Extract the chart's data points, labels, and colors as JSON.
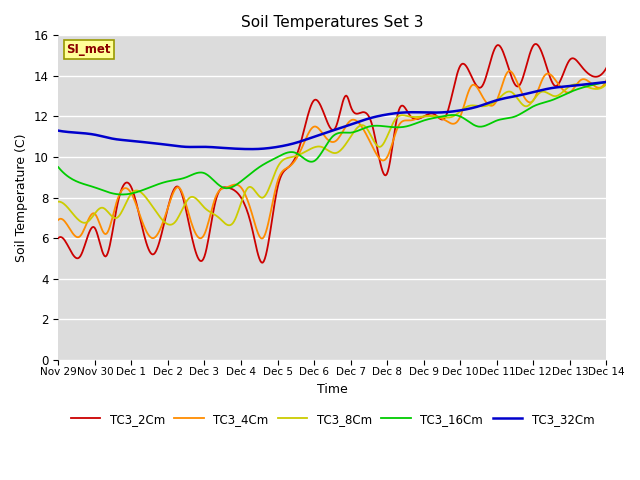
{
  "title": "Soil Temperatures Set 3",
  "xlabel": "Time",
  "ylabel": "Soil Temperature (C)",
  "ylim": [
    0,
    16
  ],
  "yticks": [
    0,
    2,
    4,
    6,
    8,
    10,
    12,
    14,
    16
  ],
  "background_color": "#dcdcdc",
  "annotation_text": "SI_met",
  "annotation_color": "#8b0000",
  "annotation_bg": "#ffff99",
  "x_labels": [
    "Nov 29",
    "Nov 30",
    "Dec 1",
    "Dec 2",
    "Dec 3",
    "Dec 4",
    "Dec 5",
    "Dec 6",
    "Dec 7",
    "Dec 8",
    "Dec 9",
    "Dec 10",
    "Dec 11",
    "Dec 12",
    "Dec 13",
    "Dec 14"
  ],
  "series_names": [
    "TC3_2Cm",
    "TC3_4Cm",
    "TC3_8Cm",
    "TC3_16Cm",
    "TC3_32Cm"
  ],
  "series_colors": [
    "#cc0000",
    "#ff8c00",
    "#cccc00",
    "#00cc00",
    "#0000cc"
  ],
  "series_lw": [
    1.3,
    1.3,
    1.3,
    1.3,
    1.8
  ],
  "TC3_2Cm_x": [
    0,
    0.3,
    0.6,
    1.0,
    1.3,
    1.6,
    2.0,
    2.3,
    2.6,
    3.0,
    3.3,
    3.6,
    4.0,
    4.3,
    4.6,
    5.0,
    5.3,
    5.6,
    6.0,
    6.3,
    6.6,
    7.0,
    7.3,
    7.6,
    7.9,
    8.0,
    8.3,
    8.6,
    9.0,
    9.3,
    9.6,
    10.0,
    10.3,
    10.6,
    11.0,
    11.3,
    11.6,
    12.0,
    12.3,
    12.6,
    13.0,
    13.3,
    13.6,
    14.0,
    14.3,
    14.6,
    15.0
  ],
  "TC3_2Cm_y": [
    6.0,
    5.5,
    5.1,
    6.5,
    5.1,
    7.5,
    8.5,
    6.5,
    5.2,
    7.5,
    8.5,
    6.5,
    5.1,
    7.8,
    8.5,
    8.0,
    6.5,
    4.8,
    8.5,
    9.5,
    10.5,
    12.8,
    12.0,
    11.5,
    13.0,
    12.5,
    12.2,
    11.5,
    9.2,
    12.2,
    12.1,
    12.0,
    12.1,
    12.0,
    14.5,
    14.0,
    13.5,
    15.5,
    14.5,
    13.5,
    15.5,
    14.8,
    13.5,
    14.8,
    14.5,
    14.0,
    14.4
  ],
  "TC3_4Cm_x": [
    0,
    0.3,
    0.6,
    1.0,
    1.3,
    1.6,
    2.0,
    2.3,
    2.6,
    3.0,
    3.3,
    3.6,
    4.0,
    4.3,
    4.6,
    5.0,
    5.3,
    5.6,
    6.0,
    6.3,
    6.6,
    7.0,
    7.3,
    7.6,
    8.0,
    8.3,
    8.6,
    9.0,
    9.3,
    9.6,
    10.0,
    10.3,
    10.6,
    11.0,
    11.3,
    11.6,
    12.0,
    12.3,
    12.6,
    13.0,
    13.3,
    13.6,
    14.0,
    14.3,
    14.6,
    15.0
  ],
  "TC3_4Cm_y": [
    6.9,
    6.5,
    6.1,
    7.2,
    6.2,
    7.8,
    8.2,
    6.8,
    6.0,
    7.5,
    8.5,
    7.0,
    6.2,
    8.0,
    8.5,
    8.5,
    7.2,
    6.0,
    8.8,
    9.5,
    10.2,
    11.5,
    11.0,
    10.8,
    11.8,
    11.5,
    10.5,
    10.0,
    11.5,
    11.8,
    12.0,
    12.0,
    11.8,
    12.0,
    13.5,
    13.0,
    12.8,
    14.2,
    13.5,
    12.8,
    14.0,
    13.8,
    13.2,
    13.8,
    13.6,
    13.8
  ],
  "TC3_8Cm_x": [
    0,
    0.4,
    0.8,
    1.2,
    1.6,
    2.0,
    2.4,
    2.8,
    3.2,
    3.6,
    4.0,
    4.4,
    4.8,
    5.2,
    5.6,
    6.0,
    6.4,
    6.8,
    7.2,
    7.6,
    8.0,
    8.4,
    8.8,
    9.2,
    9.6,
    10.0,
    10.4,
    10.8,
    11.2,
    11.6,
    12.0,
    12.4,
    12.8,
    13.2,
    13.6,
    14.0,
    14.4,
    15.0
  ],
  "TC3_8Cm_y": [
    7.8,
    7.2,
    6.8,
    7.5,
    7.0,
    8.2,
    8.0,
    7.0,
    6.8,
    8.0,
    7.5,
    7.0,
    6.8,
    8.5,
    8.0,
    9.5,
    10.0,
    10.3,
    10.5,
    10.2,
    11.0,
    11.5,
    10.5,
    11.8,
    12.0,
    12.0,
    12.0,
    12.0,
    12.5,
    12.5,
    12.8,
    13.2,
    12.5,
    13.2,
    13.0,
    13.5,
    13.5,
    13.6
  ],
  "TC3_16Cm_x": [
    0,
    0.5,
    1.0,
    1.5,
    2.0,
    2.5,
    3.0,
    3.5,
    4.0,
    4.5,
    5.0,
    5.5,
    6.0,
    6.5,
    7.0,
    7.5,
    8.0,
    8.5,
    9.0,
    9.5,
    10.0,
    10.5,
    11.0,
    11.5,
    12.0,
    12.5,
    13.0,
    13.5,
    14.0,
    14.5,
    15.0
  ],
  "TC3_16Cm_y": [
    9.5,
    8.8,
    8.5,
    8.2,
    8.2,
    8.5,
    8.8,
    9.0,
    9.2,
    8.5,
    8.8,
    9.5,
    10.0,
    10.2,
    9.8,
    11.0,
    11.2,
    11.5,
    11.5,
    11.5,
    11.8,
    12.0,
    12.0,
    11.5,
    11.8,
    12.0,
    12.5,
    12.8,
    13.2,
    13.5,
    13.7
  ],
  "TC3_32Cm_x": [
    0,
    0.5,
    1.0,
    1.5,
    2.0,
    2.5,
    3.0,
    3.5,
    4.0,
    4.5,
    5.0,
    5.5,
    6.0,
    6.5,
    7.0,
    7.5,
    8.0,
    8.5,
    9.0,
    9.5,
    10.0,
    10.5,
    11.0,
    11.5,
    12.0,
    12.5,
    13.0,
    13.5,
    14.0,
    14.5,
    15.0
  ],
  "TC3_32Cm_y": [
    11.3,
    11.2,
    11.1,
    10.9,
    10.8,
    10.7,
    10.6,
    10.5,
    10.5,
    10.45,
    10.4,
    10.4,
    10.5,
    10.7,
    11.0,
    11.3,
    11.6,
    11.9,
    12.1,
    12.2,
    12.2,
    12.2,
    12.3,
    12.5,
    12.8,
    13.0,
    13.2,
    13.4,
    13.5,
    13.6,
    13.7
  ]
}
